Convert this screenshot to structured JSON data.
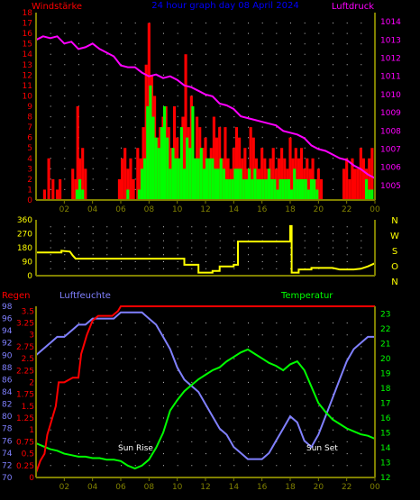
{
  "header": {
    "left_label": "Windstärke",
    "center_title": "24 hour graph day 08 April 2024",
    "right_label": "Luftdruck"
  },
  "colors": {
    "background": "#000000",
    "wind_gust": "#ff0000",
    "wind_avg": "#00ff00",
    "pressure": "#ff00ff",
    "direction": "#ffff00",
    "humidity": "#8080ff",
    "temperature": "#00ff00",
    "rain": "#ff0000",
    "axis": "#808000",
    "grid": "#c0c0c0"
  },
  "x_ticks": [
    "02",
    "04",
    "06",
    "08",
    "10",
    "12",
    "14",
    "16",
    "18",
    "20",
    "22",
    "00"
  ],
  "direction_labels": [
    "N",
    "W",
    "S",
    "O",
    "N"
  ],
  "annotations": {
    "sun_rise": "Sun Rise",
    "sun_set": "Sun Set"
  },
  "bottom_labels": {
    "rain": "Regen",
    "humidity": "Luftfeuchte",
    "temperature": "Temperatur"
  },
  "chart_data": [
    {
      "type": "bar",
      "title": "24 hour graph day 08 April 2024",
      "xlabel": "",
      "ylabel": "Windstärke",
      "x_unit": "hour",
      "xlim": [
        0,
        24
      ],
      "ylim": [
        0,
        18
      ],
      "left_ticks": [
        "0",
        "1",
        "2",
        "3",
        "4",
        "5",
        "6",
        "7",
        "8",
        "9",
        "10",
        "11",
        "12",
        "13",
        "14",
        "15",
        "16",
        "17",
        "18"
      ],
      "right_ylabel": "Luftdruck",
      "right_ylim": [
        1004.2,
        1014.5
      ],
      "right_ticks": [
        "1005",
        "1006",
        "1007",
        "1008",
        "1009",
        "1010",
        "1011",
        "1012",
        "1013",
        "1014"
      ],
      "series": [
        {
          "name": "",
          "kind": "bar",
          "color": "#ff0000",
          "x": [
            0.6,
            0.9,
            1.2,
            1.5,
            1.7,
            2.6,
            2.8,
            2.95,
            3.1,
            3.3,
            3.5,
            5.9,
            6.1,
            6.3,
            6.5,
            6.7,
            6.9,
            7.2,
            7.4,
            7.6,
            7.8,
            8.0,
            8.2,
            8.4,
            8.6,
            8.8,
            9.0,
            9.2,
            9.4,
            9.6,
            9.8,
            10.0,
            10.2,
            10.4,
            10.6,
            10.8,
            11.0,
            11.2,
            11.4,
            11.6,
            11.8,
            12.0,
            12.2,
            12.4,
            12.6,
            12.8,
            13.0,
            13.2,
            13.4,
            13.6,
            13.8,
            14.0,
            14.2,
            14.4,
            14.6,
            14.8,
            15.0,
            15.2,
            15.4,
            15.6,
            15.8,
            16.0,
            16.2,
            16.4,
            16.6,
            16.8,
            17.0,
            17.2,
            17.4,
            17.6,
            17.8,
            18.0,
            18.2,
            18.4,
            18.6,
            18.8,
            19.0,
            19.2,
            19.4,
            19.6,
            19.8,
            20.0,
            20.2,
            21.8,
            22.0,
            22.2,
            22.4,
            22.6,
            22.8,
            23.0,
            23.2,
            23.4,
            23.6,
            23.8
          ],
          "values": [
            1,
            4,
            2,
            1,
            2,
            3,
            2,
            9,
            4,
            5,
            3,
            2,
            4,
            5,
            3,
            4,
            2,
            5,
            4,
            7,
            13,
            17,
            12,
            10,
            6,
            7,
            8,
            9,
            7,
            5,
            9,
            6,
            4,
            8,
            14,
            7,
            10,
            4,
            8,
            7,
            5,
            6,
            4,
            5,
            8,
            6,
            7,
            4,
            7,
            4,
            3,
            5,
            7,
            6,
            4,
            5,
            3,
            7,
            6,
            4,
            3,
            5,
            4,
            3,
            4,
            5,
            3,
            4,
            5,
            4,
            3,
            6,
            4,
            5,
            4,
            5,
            3,
            4,
            3,
            4,
            2,
            3,
            2,
            3,
            4,
            2,
            4,
            3,
            3,
            5,
            4,
            3,
            4,
            5
          ]
        },
        {
          "name": "",
          "kind": "bar",
          "color": "#00ff00",
          "x": [
            2.9,
            3.1,
            3.3,
            6.5,
            7.3,
            7.5,
            7.7,
            7.9,
            8.1,
            8.3,
            8.5,
            8.7,
            8.9,
            9.1,
            9.3,
            9.5,
            9.7,
            9.9,
            10.1,
            10.3,
            10.5,
            10.7,
            10.9,
            11.1,
            11.3,
            11.5,
            11.7,
            11.9,
            12.1,
            12.3,
            12.5,
            12.7,
            12.9,
            13.1,
            13.3,
            13.5,
            13.7,
            13.9,
            14.1,
            14.3,
            14.5,
            14.7,
            14.9,
            15.1,
            15.3,
            15.5,
            15.7,
            15.9,
            16.1,
            16.3,
            16.5,
            16.7,
            16.9,
            17.1,
            17.3,
            17.5,
            17.7,
            17.9,
            18.1,
            18.3,
            18.5,
            18.7,
            18.9,
            19.1,
            19.3,
            19.5,
            19.7,
            19.9,
            23.4,
            23.6,
            23.8
          ],
          "values": [
            1,
            2,
            1,
            1,
            1,
            3,
            4,
            9,
            11,
            8,
            6,
            5,
            7,
            9,
            6,
            3,
            5,
            4,
            4,
            7,
            3,
            6,
            5,
            9,
            4,
            4,
            5,
            3,
            4,
            4,
            4,
            3,
            3,
            4,
            3,
            2,
            2,
            2,
            3,
            3,
            3,
            2,
            2,
            3,
            2,
            3,
            2,
            2,
            2,
            2,
            3,
            2,
            2,
            1,
            2,
            2,
            2,
            2,
            1,
            3,
            2,
            2,
            2,
            2,
            1,
            2,
            2,
            1,
            2,
            1,
            1
          ]
        },
        {
          "name": "",
          "kind": "line",
          "axis": "right",
          "color": "#ff00ff",
          "x": [
            0.0,
            0.5,
            1.0,
            1.5,
            2.0,
            2.5,
            3.0,
            3.5,
            4.0,
            4.5,
            5.0,
            5.5,
            6.0,
            6.5,
            7.0,
            7.5,
            8.0,
            8.5,
            9.0,
            9.5,
            10.0,
            10.5,
            11.0,
            11.5,
            12.0,
            12.5,
            13.0,
            13.5,
            14.0,
            14.5,
            15.0,
            15.5,
            16.0,
            16.5,
            17.0,
            17.5,
            18.0,
            18.5,
            19.0,
            19.5,
            20.0,
            20.5,
            21.0,
            21.5,
            22.0,
            22.5,
            23.0,
            23.5,
            24.0
          ],
          "values": [
            1013.0,
            1013.2,
            1013.1,
            1013.2,
            1012.8,
            1012.9,
            1012.5,
            1012.6,
            1012.8,
            1012.5,
            1012.3,
            1012.1,
            1011.6,
            1011.5,
            1011.5,
            1011.2,
            1011.0,
            1011.1,
            1010.9,
            1011.0,
            1010.8,
            1010.5,
            1010.4,
            1010.2,
            1010.0,
            1009.9,
            1009.5,
            1009.4,
            1009.2,
            1008.8,
            1008.7,
            1008.6,
            1008.5,
            1008.4,
            1008.3,
            1008.0,
            1007.9,
            1007.8,
            1007.6,
            1007.2,
            1007.0,
            1006.9,
            1006.7,
            1006.5,
            1006.4,
            1006.1,
            1005.9,
            1005.6,
            1005.4
          ]
        }
      ]
    },
    {
      "type": "line",
      "title": "",
      "xlabel": "",
      "ylabel": "",
      "x_unit": "hour",
      "xlim": [
        0,
        24
      ],
      "ylim": [
        0,
        360
      ],
      "left_ticks": [
        "0",
        "90",
        "180",
        "270",
        "360"
      ],
      "grid": true,
      "series": [
        {
          "name": "",
          "color": "#ffff00",
          "x": [
            0.0,
            1.8,
            1.8,
            2.4,
            2.6,
            2.8,
            10.5,
            10.5,
            11.5,
            11.5,
            12.5,
            12.5,
            13.0,
            13.0,
            14.0,
            14.0,
            14.3,
            14.3,
            18.0,
            18.0,
            18.1,
            18.1,
            18.6,
            18.6,
            19.5,
            19.5,
            21.0,
            21.5,
            22.5,
            23.0,
            23.5,
            24.0
          ],
          "values": [
            150,
            150,
            160,
            155,
            130,
            110,
            110,
            70,
            70,
            20,
            20,
            30,
            30,
            60,
            60,
            70,
            70,
            220,
            220,
            320,
            320,
            20,
            20,
            40,
            40,
            50,
            50,
            40,
            40,
            45,
            60,
            80
          ]
        }
      ]
    },
    {
      "type": "line",
      "title": "",
      "xlabel": "",
      "ylabel": "Regen",
      "x_unit": "hour",
      "xlim": [
        0,
        24
      ],
      "ylim": [
        0,
        3.6
      ],
      "left_ticks": [
        "0",
        "0.25",
        "0.5",
        "0.75",
        "1",
        "1.25",
        "1.5",
        "1.75",
        "2",
        "2.25",
        "2.5",
        "2.75",
        "3",
        "3.25",
        "3.5"
      ],
      "humidity_ylabel": "Luftfeuchte",
      "humidity_ylim": [
        70,
        98
      ],
      "humidity_ticks": [
        "70",
        "72",
        "74",
        "76",
        "78",
        "80",
        "82",
        "84",
        "86",
        "88",
        "90",
        "92",
        "94",
        "96",
        "98"
      ],
      "temperature_ylabel": "Temperatur",
      "temperature_ylim": [
        12,
        23.5
      ],
      "temperature_ticks": [
        "12",
        "13",
        "14",
        "15",
        "16",
        "17",
        "18",
        "19",
        "20",
        "21",
        "22",
        "23"
      ],
      "series": [
        {
          "name": "Regen",
          "axis": "rain",
          "color": "#ff0000",
          "x": [
            0.0,
            0.3,
            0.6,
            0.8,
            1.0,
            1.2,
            1.4,
            1.6,
            2.0,
            2.6,
            3.0,
            3.2,
            3.4,
            3.6,
            4.0,
            4.4,
            5.0,
            5.4,
            5.6,
            5.8,
            6.0,
            24.0
          ],
          "values": [
            0.1,
            0.35,
            0.5,
            0.9,
            1.1,
            1.3,
            1.5,
            2.0,
            2.0,
            2.1,
            2.1,
            2.6,
            2.8,
            3.0,
            3.3,
            3.4,
            3.4,
            3.4,
            3.45,
            3.5,
            3.6,
            3.6
          ]
        },
        {
          "name": "Luftfeuchte",
          "axis": "humidity",
          "color": "#8080ff",
          "x": [
            0.0,
            0.5,
            1.0,
            1.5,
            2.0,
            2.5,
            3.0,
            3.5,
            4.0,
            4.5,
            5.0,
            5.5,
            6.0,
            6.5,
            7.0,
            7.5,
            8.0,
            8.5,
            9.0,
            9.5,
            10.0,
            10.5,
            11.0,
            11.5,
            12.0,
            12.5,
            13.0,
            13.5,
            14.0,
            14.5,
            15.0,
            15.5,
            16.0,
            16.5,
            17.0,
            17.5,
            18.0,
            18.5,
            19.0,
            19.5,
            20.0,
            20.5,
            21.0,
            21.5,
            22.0,
            22.5,
            23.0,
            23.5,
            24.0
          ],
          "values": [
            90,
            91,
            92,
            93,
            93,
            94,
            95,
            95,
            96,
            96,
            96,
            96,
            97,
            97,
            97,
            97,
            96,
            95,
            93,
            91,
            88,
            86,
            85,
            84,
            82,
            80,
            78,
            77,
            75,
            74,
            73,
            73,
            73,
            74,
            76,
            78,
            80,
            79,
            76,
            75,
            77,
            80,
            83,
            86,
            89,
            91,
            92,
            93,
            93
          ]
        },
        {
          "name": "Temperatur",
          "axis": "temperature",
          "color": "#00ff00",
          "x": [
            0.0,
            0.5,
            1.0,
            1.5,
            2.0,
            2.5,
            3.0,
            3.5,
            4.0,
            4.5,
            5.0,
            5.5,
            6.0,
            6.5,
            7.0,
            7.5,
            8.0,
            8.5,
            9.0,
            9.5,
            10.0,
            10.5,
            11.0,
            11.5,
            12.0,
            12.5,
            13.0,
            13.5,
            14.0,
            14.5,
            15.0,
            15.5,
            16.0,
            16.5,
            17.0,
            17.5,
            18.0,
            18.5,
            19.0,
            19.5,
            20.0,
            20.5,
            21.0,
            21.5,
            22.0,
            22.5,
            23.0,
            23.5,
            24.0
          ],
          "values": [
            14.3,
            14.1,
            13.9,
            13.8,
            13.6,
            13.5,
            13.4,
            13.4,
            13.3,
            13.3,
            13.2,
            13.2,
            13.1,
            12.8,
            12.6,
            12.8,
            13.2,
            14.0,
            15.0,
            16.5,
            17.2,
            17.8,
            18.2,
            18.6,
            18.9,
            19.2,
            19.4,
            19.8,
            20.1,
            20.4,
            20.6,
            20.3,
            20.0,
            19.7,
            19.5,
            19.2,
            19.6,
            19.8,
            19.2,
            18.1,
            17.0,
            16.4,
            15.9,
            15.6,
            15.3,
            15.1,
            14.9,
            14.8,
            14.6
          ]
        }
      ]
    }
  ]
}
